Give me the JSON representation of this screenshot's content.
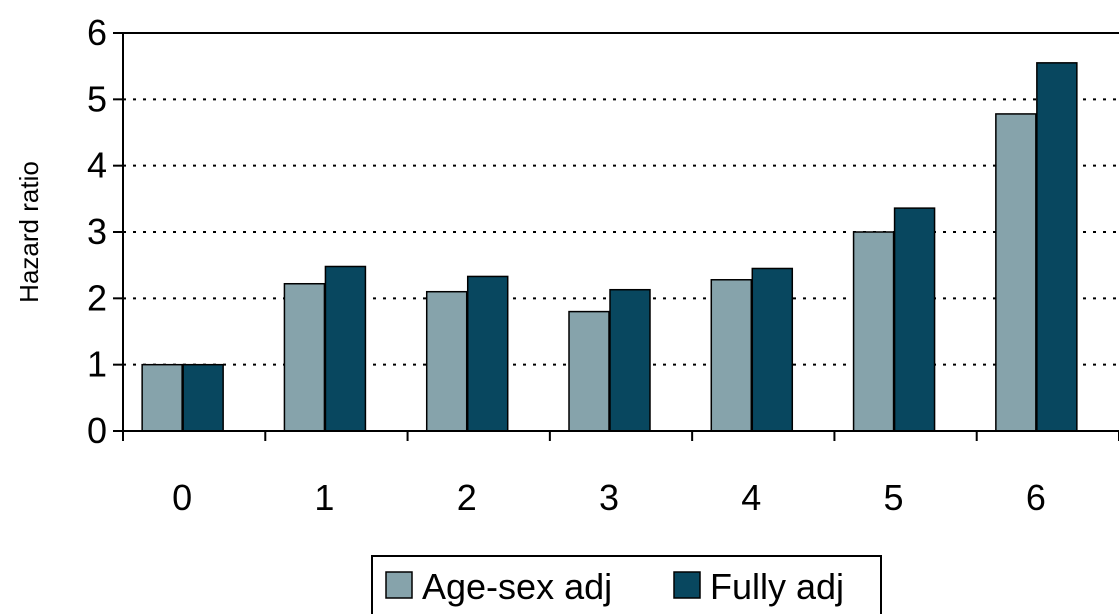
{
  "chart_data": {
    "type": "bar",
    "categories": [
      "0",
      "1",
      "2",
      "3",
      "4",
      "5",
      "6"
    ],
    "series": [
      {
        "name": "Age-sex adj",
        "color": "#86a3ab",
        "values": [
          1.0,
          2.22,
          2.1,
          1.8,
          2.28,
          3.0,
          4.78
        ]
      },
      {
        "name": "Fully adj",
        "color": "#08475f",
        "values": [
          1.0,
          2.48,
          2.33,
          2.13,
          2.45,
          3.36,
          5.55
        ]
      }
    ],
    "title": "",
    "xlabel": "",
    "ylabel": "Hazard ratio",
    "ylim": [
      0,
      6
    ],
    "yticks": [
      "0",
      "1",
      "2",
      "3",
      "4",
      "5",
      "6"
    ],
    "grid": "horizontal-dotted",
    "legend": "bottom-center"
  }
}
